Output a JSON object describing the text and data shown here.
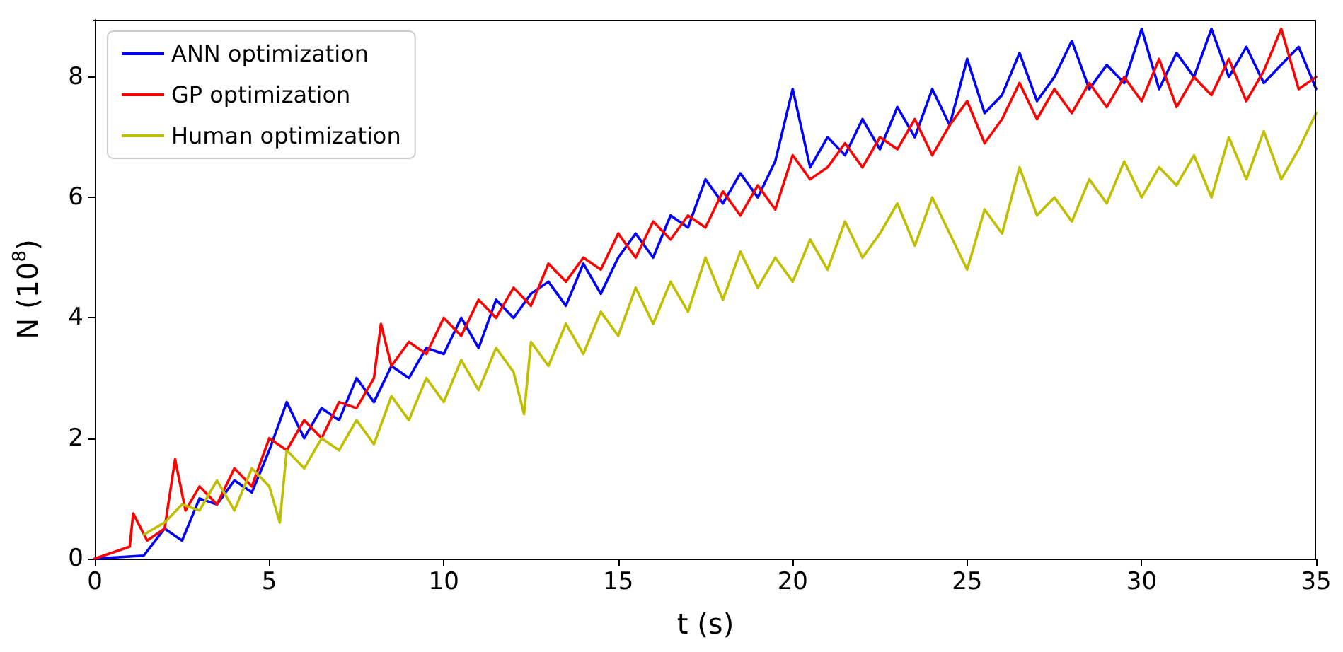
{
  "chart_data": {
    "type": "line",
    "xlabel": "t (s)",
    "ylabel": "N (10$^{8}$)",
    "xlim": [
      0,
      35
    ],
    "xticks": [
      0,
      5,
      10,
      15,
      20,
      25,
      30,
      35
    ],
    "ylim": [
      0,
      8.95
    ],
    "yticks": [
      0,
      2,
      4,
      6,
      8
    ],
    "grid": false,
    "legend": "top left",
    "marker": "none",
    "line_style": "solid",
    "series": [
      {
        "name": "ANN optimization",
        "color": "#0000ff",
        "x": [
          0,
          1.4,
          2,
          2.5,
          3,
          3.5,
          4,
          4.5,
          5,
          5.5,
          6,
          6.5,
          7,
          7.5,
          8,
          8.5,
          9,
          9.5,
          10,
          10.5,
          11,
          11.5,
          12,
          12.5,
          13,
          13.5,
          14,
          14.5,
          15,
          15.5,
          16,
          16.5,
          17,
          17.5,
          18,
          18.5,
          19,
          19.5,
          20,
          20.5,
          21,
          21.5,
          22,
          22.5,
          23,
          23.5,
          24,
          24.5,
          25,
          25.5,
          26,
          26.5,
          27,
          27.5,
          28,
          28.5,
          29,
          29.5,
          30,
          30.5,
          31,
          31.5,
          32,
          32.5,
          33,
          33.5,
          34,
          34.5,
          35
        ],
        "values": [
          0,
          0.05,
          0.5,
          0.3,
          1.0,
          0.9,
          1.3,
          1.1,
          1.8,
          2.6,
          2.0,
          2.5,
          2.3,
          3.0,
          2.6,
          3.2,
          3.0,
          3.5,
          3.4,
          4.0,
          3.5,
          4.3,
          4.0,
          4.4,
          4.6,
          4.2,
          4.9,
          4.4,
          5.0,
          5.4,
          5.0,
          5.7,
          5.5,
          6.3,
          5.9,
          6.4,
          6.0,
          6.6,
          7.8,
          6.5,
          7.0,
          6.7,
          7.3,
          6.8,
          7.5,
          7.0,
          7.8,
          7.2,
          8.3,
          7.4,
          7.7,
          8.4,
          7.6,
          8.0,
          8.6,
          7.8,
          8.2,
          7.9,
          8.8,
          7.8,
          8.4,
          8.0,
          8.8,
          8.0,
          8.5,
          7.9,
          8.2,
          8.5,
          7.8
        ]
      },
      {
        "name": "GP optimization",
        "color": "#ff0000",
        "x": [
          0,
          1,
          1.1,
          1.5,
          2,
          2.3,
          2.6,
          3,
          3.5,
          4,
          4.5,
          5,
          5.5,
          6,
          6.5,
          7,
          7.5,
          8,
          8.2,
          8.5,
          9,
          9.5,
          10,
          10.5,
          11,
          11.5,
          12,
          12.5,
          13,
          13.5,
          14,
          14.5,
          15,
          15.5,
          16,
          16.5,
          17,
          17.5,
          18,
          18.5,
          19,
          19.5,
          20,
          20.5,
          21,
          21.5,
          22,
          22.5,
          23,
          23.5,
          24,
          24.5,
          25,
          25.5,
          26,
          26.5,
          27,
          27.5,
          28,
          28.5,
          29,
          29.5,
          30,
          30.5,
          31,
          31.5,
          32,
          32.5,
          33,
          33.5,
          34,
          34.5,
          35
        ],
        "values": [
          0,
          0.2,
          0.75,
          0.3,
          0.5,
          1.65,
          0.8,
          1.2,
          0.9,
          1.5,
          1.2,
          2.0,
          1.8,
          2.3,
          2.0,
          2.6,
          2.5,
          3.0,
          3.9,
          3.2,
          3.6,
          3.4,
          4.0,
          3.7,
          4.3,
          4.0,
          4.5,
          4.2,
          4.9,
          4.6,
          5.0,
          4.8,
          5.4,
          5.0,
          5.6,
          5.3,
          5.7,
          5.5,
          6.1,
          5.7,
          6.2,
          5.8,
          6.7,
          6.3,
          6.5,
          6.9,
          6.5,
          7.0,
          6.8,
          7.3,
          6.7,
          7.2,
          7.6,
          6.9,
          7.3,
          7.9,
          7.3,
          7.8,
          7.4,
          7.9,
          7.5,
          8.0,
          7.6,
          8.3,
          7.5,
          8.0,
          7.7,
          8.3,
          7.6,
          8.1,
          8.8,
          7.8,
          8.0
        ]
      },
      {
        "name": "Human optimization",
        "color": "#bfbf00",
        "x": [
          1.4,
          2,
          2.5,
          3,
          3.5,
          4,
          4.5,
          5,
          5.3,
          5.5,
          6,
          6.5,
          7,
          7.5,
          8,
          8.5,
          9,
          9.5,
          10,
          10.5,
          11,
          11.5,
          12,
          12.3,
          12.5,
          13,
          13.5,
          14,
          14.5,
          15,
          15.5,
          16,
          16.5,
          17,
          17.5,
          18,
          18.5,
          19,
          19.5,
          20,
          20.5,
          21,
          21.5,
          22,
          22.5,
          23,
          23.5,
          24,
          24.5,
          25,
          25.5,
          26,
          26.5,
          27,
          27.5,
          28,
          28.5,
          29,
          29.5,
          30,
          30.5,
          31,
          31.5,
          32,
          32.5,
          33,
          33.5,
          34,
          34.5,
          35
        ],
        "values": [
          0.4,
          0.6,
          0.9,
          0.8,
          1.3,
          0.8,
          1.5,
          1.2,
          0.6,
          1.8,
          1.5,
          2.0,
          1.8,
          2.3,
          1.9,
          2.7,
          2.3,
          3.0,
          2.6,
          3.3,
          2.8,
          3.5,
          3.1,
          2.4,
          3.6,
          3.2,
          3.9,
          3.4,
          4.1,
          3.7,
          4.5,
          3.9,
          4.6,
          4.1,
          5.0,
          4.3,
          5.1,
          4.5,
          5.0,
          4.6,
          5.3,
          4.8,
          5.6,
          5.0,
          5.4,
          5.9,
          5.2,
          6.0,
          5.4,
          4.8,
          5.8,
          5.4,
          6.5,
          5.7,
          6.0,
          5.6,
          6.3,
          5.9,
          6.6,
          6.0,
          6.5,
          6.2,
          6.7,
          6.0,
          7.0,
          6.3,
          7.1,
          6.3,
          6.8,
          7.4
        ]
      }
    ]
  }
}
